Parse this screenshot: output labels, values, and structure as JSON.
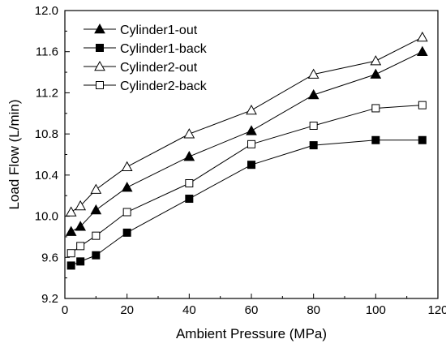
{
  "chart_data": {
    "type": "line",
    "xlabel": "Ambient Pressure (MPa)",
    "ylabel": "Load Flow (L/min)",
    "xlim": [
      0,
      120
    ],
    "ylim": [
      9.2,
      12.0
    ],
    "xticks": [
      "0",
      "20",
      "40",
      "60",
      "80",
      "100",
      "120"
    ],
    "yticks": [
      "9.2",
      "9.6",
      "10.0",
      "10.4",
      "10.8",
      "11.2",
      "11.6",
      "12.0"
    ],
    "grid": false,
    "legend_position": "top-left",
    "x": [
      2,
      5,
      10,
      20,
      40,
      60,
      80,
      100,
      115
    ],
    "series": [
      {
        "name": "Cylinder1-out",
        "marker": "triangle-filled",
        "values": [
          9.85,
          9.9,
          10.06,
          10.28,
          10.58,
          10.83,
          11.18,
          11.38,
          11.6
        ]
      },
      {
        "name": "Cylinder1-back",
        "marker": "square-filled",
        "values": [
          9.52,
          9.56,
          9.62,
          9.84,
          10.17,
          10.5,
          10.69,
          10.74,
          10.74
        ]
      },
      {
        "name": "Cylinder2-out",
        "marker": "triangle-open",
        "values": [
          10.04,
          10.1,
          10.26,
          10.48,
          10.8,
          11.03,
          11.38,
          11.51,
          11.74
        ]
      },
      {
        "name": "Cylinder2-back",
        "marker": "square-open",
        "values": [
          9.64,
          9.71,
          9.81,
          10.04,
          10.32,
          10.7,
          10.88,
          11.05,
          11.08
        ]
      }
    ]
  }
}
